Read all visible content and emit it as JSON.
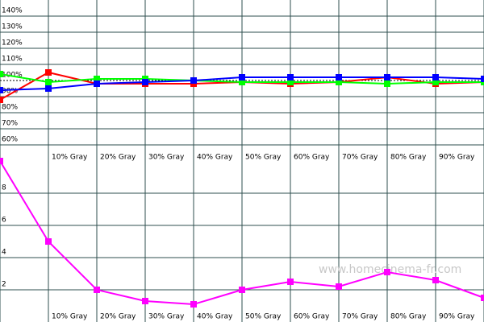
{
  "chart_data": [
    {
      "type": "line",
      "categories": [
        null,
        "10% Gray",
        "20% Gray",
        "30% Gray",
        "40% Gray",
        "50% Gray",
        "60% Gray",
        "70% Gray",
        "80% Gray",
        "90% Gray",
        null
      ],
      "series": [
        {
          "color": "#ff0000",
          "values": [
            88,
            105,
            98,
            98,
            98,
            99,
            98,
            99,
            102,
            98,
            99
          ]
        },
        {
          "color": "#00ff00",
          "values": [
            104,
            99,
            101,
            101,
            100,
            99,
            99,
            99,
            98,
            99,
            99
          ]
        },
        {
          "color": "#0000ff",
          "values": [
            94,
            95,
            98,
            99,
            100,
            102,
            102,
            102,
            102,
            102,
            101
          ]
        }
      ],
      "ylim": [
        55,
        150
      ],
      "yticks": [
        {
          "value": 60,
          "label": "60%"
        },
        {
          "value": 70,
          "label": "70%"
        },
        {
          "value": 80,
          "label": "80%"
        },
        {
          "value": 90,
          "label": "90%"
        },
        {
          "value": 100,
          "label": "100%"
        },
        {
          "value": 110,
          "label": "110%"
        },
        {
          "value": 120,
          "label": "120%"
        },
        {
          "value": 130,
          "label": "130%"
        },
        {
          "value": 140,
          "label": "140%"
        }
      ],
      "reference": 100,
      "grid": true
    },
    {
      "type": "line",
      "categories": [
        null,
        "10% Gray",
        "20% Gray",
        "30% Gray",
        "40% Gray",
        "50% Gray",
        "60% Gray",
        "70% Gray",
        "80% Gray",
        "90% Gray",
        null
      ],
      "series": [
        {
          "color": "#ff00ff",
          "values": [
            10,
            5,
            2,
            1.3,
            1.1,
            2,
            2.5,
            2.2,
            3.1,
            2.6,
            1.5
          ]
        }
      ],
      "ylim": [
        0,
        10
      ],
      "yticks": [
        2,
        4,
        6,
        8
      ],
      "grid": true
    }
  ],
  "watermark": "www.homecinema-fr.com"
}
